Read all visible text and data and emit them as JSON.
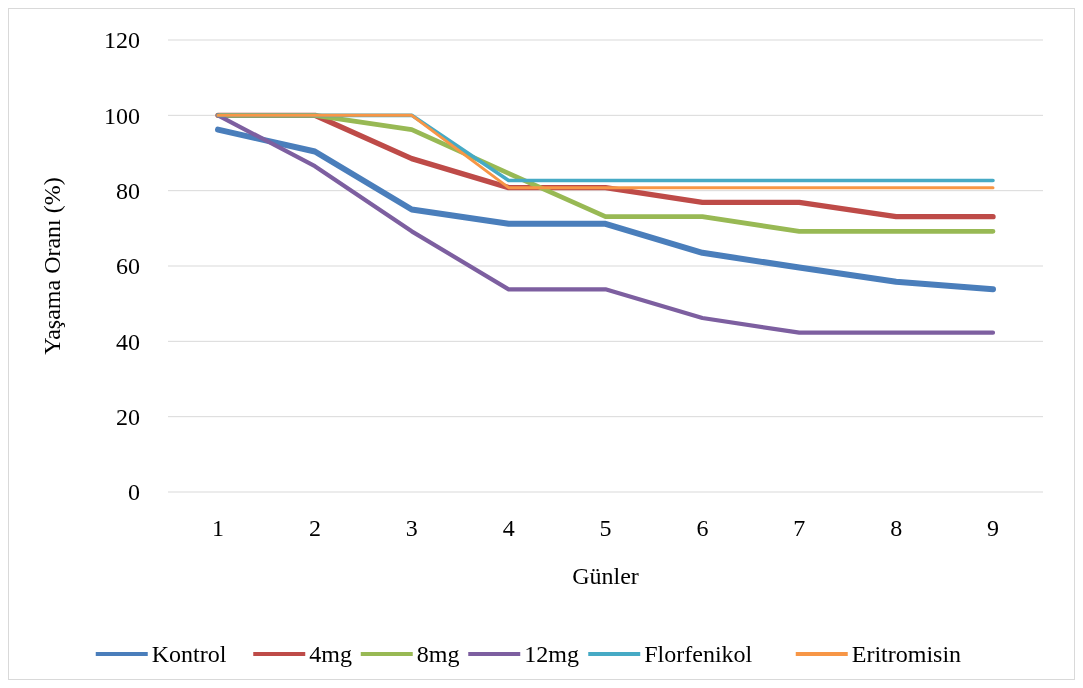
{
  "chart_data": {
    "type": "line",
    "xlabel": "Günler",
    "ylabel": "Yaşama Oranı (%)",
    "categories": [
      "1",
      "2",
      "3",
      "4",
      "5",
      "6",
      "7",
      "8",
      "9"
    ],
    "ylim": [
      0,
      120
    ],
    "yticks": [
      0,
      20,
      40,
      60,
      80,
      100,
      120
    ],
    "grid": "y",
    "legend": "bottom",
    "marker": "none",
    "series": [
      {
        "name": "Kontrol",
        "color": "#4a7ebb",
        "values": [
          96.2,
          90.4,
          75,
          71.2,
          71.2,
          63.5,
          59.6,
          55.8,
          53.8
        ]
      },
      {
        "name": "4mg",
        "color": "#be4b48",
        "values": [
          100,
          100,
          88.5,
          80.8,
          80.8,
          76.9,
          76.9,
          73.1,
          73.1
        ]
      },
      {
        "name": "8mg",
        "color": "#98b954",
        "values": [
          100,
          100,
          96.2,
          84.6,
          73.1,
          73.1,
          69.2,
          69.2,
          69.2
        ]
      },
      {
        "name": "12mg",
        "color": "#7d5fa0",
        "values": [
          100,
          86.5,
          69.2,
          53.8,
          53.8,
          46.2,
          42.3,
          42.3,
          42.3
        ]
      },
      {
        "name": "Florfenikol",
        "color": "#46aac5",
        "values": [
          100,
          100,
          100,
          82.7,
          82.7,
          82.7,
          82.7,
          82.7,
          82.7
        ]
      },
      {
        "name": "Eritromisin",
        "color": "#f79646",
        "values": [
          100,
          100,
          100,
          80.8,
          80.8,
          80.8,
          80.8,
          80.8,
          80.8
        ]
      }
    ]
  }
}
